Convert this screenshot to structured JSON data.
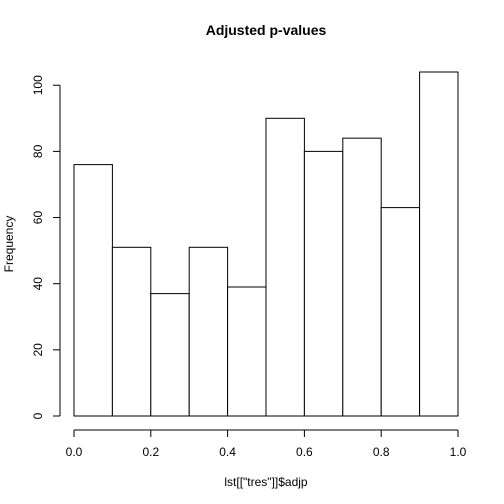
{
  "chart_data": {
    "type": "bar",
    "title": "Adjusted p-values",
    "xlabel": "lst[[\"tres\"]]$adjp",
    "ylabel": "Frequency",
    "bin_edges": [
      0.0,
      0.1,
      0.2,
      0.3,
      0.4,
      0.5,
      0.6,
      0.7,
      0.8,
      0.9,
      1.0
    ],
    "values": [
      76,
      51,
      37,
      51,
      39,
      90,
      80,
      84,
      63,
      104
    ],
    "xlim": [
      0.0,
      1.0
    ],
    "ylim": [
      0,
      104
    ],
    "x_ticks": [
      0.0,
      0.2,
      0.4,
      0.6,
      0.8,
      1.0
    ],
    "x_tick_labels": [
      "0.0",
      "0.2",
      "0.4",
      "0.6",
      "0.8",
      "1.0"
    ],
    "y_ticks": [
      0,
      20,
      40,
      60,
      80,
      100
    ],
    "y_tick_labels": [
      "0",
      "20",
      "40",
      "60",
      "80",
      "100"
    ],
    "grid": false,
    "legend": "none",
    "colors": {
      "bar_fill": "#ffffff",
      "bar_stroke": "#000000",
      "axis": "#000000"
    }
  }
}
